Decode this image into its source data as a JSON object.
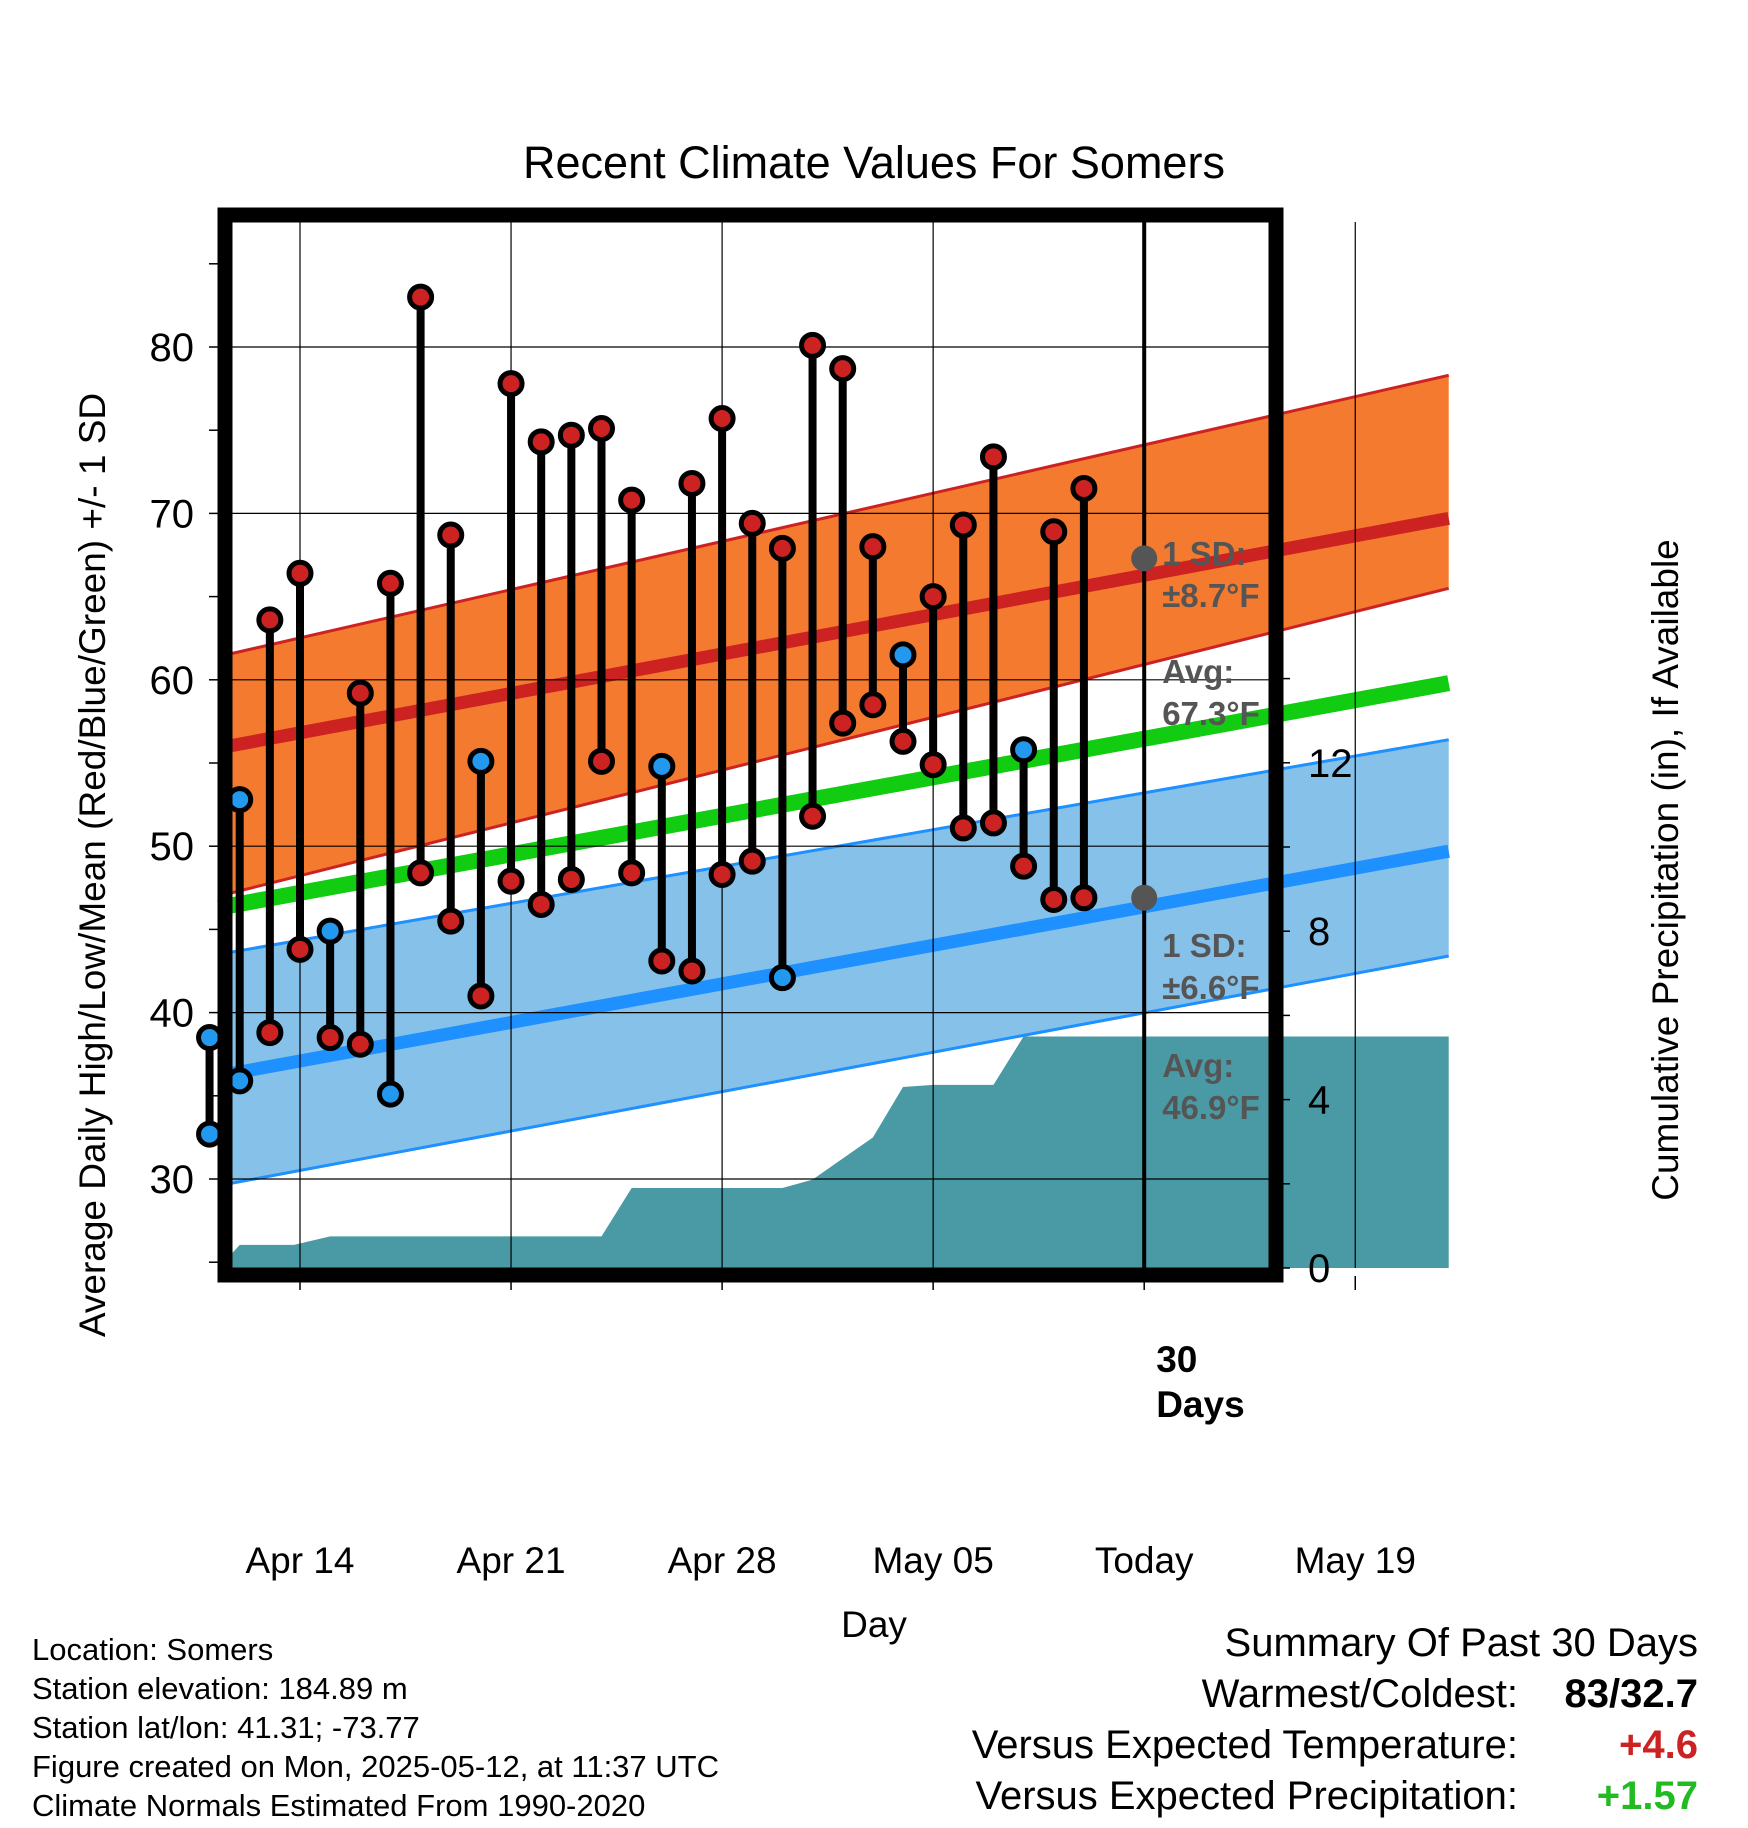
{
  "chart_data": {
    "type": "line",
    "title": "Recent Climate Values For Somers",
    "xlabel": "Day",
    "ylabel": "Average Daily High/Low/Mean (Red/Blue/Green) +/- 1 SD",
    "y2label": "Cumulative Precipitation (in), If Available",
    "xlim": [
      -0.7,
      40.1
    ],
    "ylim": [
      25,
      88
    ],
    "y2lim": [
      0,
      16
    ],
    "x_ticks": [
      {
        "x": 2,
        "label": "Apr 14"
      },
      {
        "x": 9,
        "label": "Apr 21"
      },
      {
        "x": 16,
        "label": "Apr 28"
      },
      {
        "x": 23,
        "label": "May 05"
      },
      {
        "x": 30,
        "label": "Today"
      },
      {
        "x": 37,
        "label": "May 19"
      }
    ],
    "y_ticks": [
      30,
      40,
      50,
      60,
      70,
      80
    ],
    "y2_ticks": [
      0,
      4,
      8,
      12
    ],
    "grid": true,
    "daily": {
      "x": [
        -1,
        0,
        1,
        2,
        3,
        4,
        5,
        6,
        7,
        8,
        9,
        10,
        11,
        12,
        13,
        14,
        15,
        16,
        17,
        18,
        19,
        20,
        21,
        22,
        23,
        24,
        25,
        26,
        27,
        28,
        29
      ],
      "high": [
        38.5,
        52.8,
        63.6,
        66.4,
        44.9,
        59.2,
        65.8,
        83.0,
        68.7,
        55.1,
        77.8,
        74.3,
        74.7,
        75.1,
        70.8,
        54.8,
        71.8,
        75.7,
        69.4,
        67.9,
        80.1,
        78.7,
        68.0,
        61.5,
        65.0,
        69.3,
        73.4,
        55.8,
        68.9,
        71.5,
        null
      ],
      "low": [
        32.7,
        35.9,
        38.8,
        43.8,
        38.5,
        38.1,
        35.1,
        48.4,
        45.5,
        41.0,
        47.9,
        46.5,
        48.0,
        55.1,
        48.4,
        43.1,
        42.5,
        48.3,
        49.1,
        42.1,
        51.8,
        57.4,
        58.5,
        56.3,
        54.9,
        51.1,
        51.4,
        48.8,
        46.8,
        46.9,
        null
      ],
      "colors": {
        "above_normal": "#cc2222",
        "below_normal": "#2299ee"
      }
    },
    "normals": {
      "x_start": -0.7,
      "x_end": 40.1,
      "high_mean": [
        55.9,
        69.7
      ],
      "high_sd_band": [
        [
          47.0,
          65.5
        ],
        [
          61.4,
          78.3
        ]
      ],
      "low_mean": [
        36.2,
        49.7
      ],
      "low_sd_band": [
        [
          29.6,
          43.4
        ],
        [
          43.5,
          56.4
        ]
      ],
      "mean": [
        46.3,
        59.8
      ],
      "colors": {
        "high_band": "#f47a30",
        "high_line": "#cc2222",
        "low_band": "#85c1e9",
        "low_line": "#1e90ff",
        "mean_line": "#11cc11"
      }
    },
    "precip": {
      "x": [
        -0.7,
        0.0,
        0.9,
        1.8,
        3.0,
        4.0,
        5.0,
        6.0,
        7.0,
        8.0,
        9.0,
        10.0,
        11.0,
        12.0,
        13.0,
        14.0,
        15.0,
        16.0,
        17.0,
        18.0,
        19.0,
        20.0,
        21.0,
        22.0,
        23.0,
        24.0,
        25.0,
        26.0,
        27.0,
        30.0,
        40.1
      ],
      "y": [
        0.0,
        0.55,
        0.55,
        0.55,
        0.75,
        0.75,
        0.75,
        0.75,
        0.75,
        0.75,
        0.75,
        0.75,
        0.75,
        0.75,
        1.9,
        1.9,
        1.9,
        1.9,
        1.9,
        1.9,
        2.1,
        2.6,
        3.1,
        4.3,
        4.35,
        4.35,
        4.35,
        5.5,
        5.5,
        5.5,
        5.5
      ],
      "color": "#4a9aa5"
    },
    "today_x": 30,
    "today_label": "30\nDays",
    "annotations": {
      "high": {
        "sd_label": "1 SD:",
        "sd_value": "±8.7°F",
        "avg_label": "Avg:",
        "avg_value": "67.3°F",
        "avg_y": 67.3
      },
      "low": {
        "sd_label": "1 SD:",
        "sd_value": "±6.6°F",
        "avg_label": "Avg:",
        "avg_value": "46.9°F",
        "avg_y": 46.9
      }
    }
  },
  "info": {
    "location": "Location: Somers",
    "elevation": "Station elevation: 184.89 m",
    "latlon": "Station lat/lon: 41.31; -73.77",
    "created": "Figure created on Mon, 2025-05-12, at 11:37 UTC",
    "normals": "Climate Normals Estimated From 1990-2020"
  },
  "summary": {
    "title": "Summary Of Past 30 Days",
    "warmest_coldest_label": "Warmest/Coldest:",
    "warmest_coldest_value": "83/32.7",
    "temp_label": "Versus Expected Temperature:",
    "temp_value": "+4.6",
    "temp_color": "#cc2222",
    "precip_label": "Versus Expected Precipitation:",
    "precip_value": "+1.57",
    "precip_color": "#22bb22"
  }
}
